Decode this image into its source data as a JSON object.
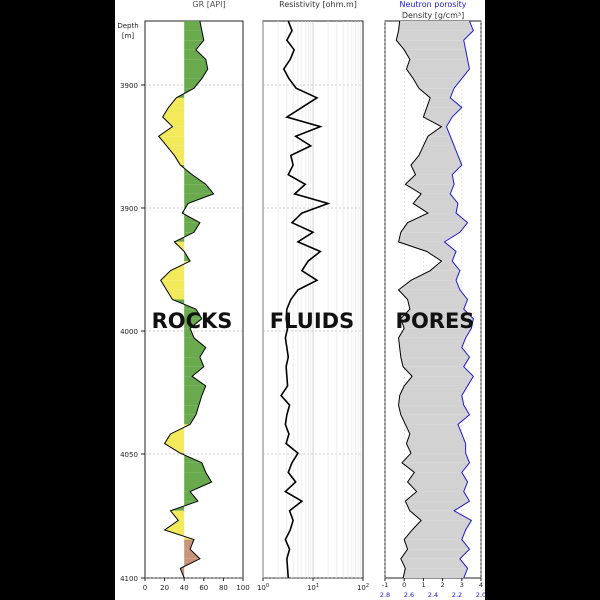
{
  "chart_data": {
    "type": "line",
    "depth_axis": {
      "label_line1": "Depth",
      "label_line2": "[m]",
      "ticks": [
        "3900",
        "3900",
        "4000",
        "4050",
        "4100"
      ]
    },
    "overlay_labels": [
      "ROCKS",
      "FLUIDS",
      "PORES"
    ],
    "tracks": [
      {
        "title": "GR [API]",
        "xlim": [
          0,
          100
        ],
        "ticks": [
          "0",
          "20",
          "40",
          "60",
          "80",
          "100"
        ],
        "fill_colors": {
          "shale": "#6aaa4e",
          "sand": "#f2ea5a",
          "other": "#c9957a"
        },
        "series": [
          {
            "name": "GR",
            "color": "#000000",
            "depth": [
              0,
              10,
              20,
              30,
              40,
              50,
              60,
              70,
              80,
              90,
              100,
              110,
              120,
              130,
              140,
              150,
              160,
              170,
              180,
              190,
              200,
              210,
              220,
              230,
              240,
              250,
              260,
              270,
              280,
              290,
              300,
              310,
              320,
              330,
              340,
              350,
              360,
              370,
              380,
              390,
              400,
              410,
              420,
              430,
              440,
              450,
              460,
              470,
              480,
              490,
              500,
              510,
              520,
              530,
              540,
              550,
              560,
              570,
              580
            ],
            "values": [
              56,
              58,
              60,
              52,
              62,
              64,
              58,
              50,
              32,
              24,
              18,
              28,
              14,
              22,
              30,
              36,
              48,
              62,
              70,
              44,
              38,
              56,
              50,
              30,
              40,
              46,
              26,
              16,
              22,
              28,
              52,
              58,
              46,
              50,
              62,
              56,
              60,
              48,
              62,
              58,
              55,
              52,
              46,
              26,
              20,
              36,
              58,
              62,
              68,
              46,
              54,
              26,
              34,
              20,
              50,
              46,
              56,
              36,
              40
            ]
          }
        ]
      },
      {
        "title": "Resistivity [ohm.m]",
        "scale": "log",
        "xlim": [
          1,
          100
        ],
        "ticks": [
          {
            "base": "10",
            "exp": "0"
          },
          {
            "base": "10",
            "exp": "1"
          },
          {
            "base": "10",
            "exp": "2"
          }
        ],
        "series": [
          {
            "name": "Resistivity",
            "color": "#000000",
            "depth": [
              0,
              10,
              20,
              30,
              40,
              50,
              60,
              70,
              80,
              90,
              100,
              110,
              120,
              130,
              140,
              150,
              160,
              170,
              180,
              190,
              200,
              210,
              220,
              230,
              240,
              250,
              260,
              270,
              280,
              290,
              300,
              310,
              320,
              330,
              340,
              350,
              360,
              370,
              380,
              390,
              400,
              410,
              420,
              430,
              440,
              450,
              460,
              470,
              480,
              490,
              500,
              510,
              520,
              530,
              540,
              550,
              560,
              570,
              580
            ],
            "values": [
              3.2,
              3.8,
              3.0,
              4.2,
              3.5,
              2.6,
              3.3,
              4.6,
              12,
              6,
              3.0,
              14,
              4.5,
              9,
              3.6,
              4.0,
              3.2,
              7,
              4.3,
              20,
              6,
              3.8,
              10,
              5,
              14,
              8,
              6,
              12,
              5,
              3.6,
              3.0,
              2.9,
              3.1,
              2.8,
              3.0,
              3.2,
              2.9,
              3.0,
              3.1,
              2.3,
              3.4,
              3.0,
              2.8,
              3.3,
              2.9,
              5,
              3.8,
              3.2,
              4.5,
              2.8,
              6,
              3.4,
              4.0,
              3.5,
              2.8,
              3.4,
              3.0,
              3.1,
              3.2
            ]
          }
        ]
      },
      {
        "title_top": "Neutron porosity",
        "title_bottom": "Density [g/cm³]",
        "top_ticks": [
          "-1",
          "0",
          "1",
          "2",
          "3",
          "4"
        ],
        "bottom_ticks": [
          "2.8",
          "2.6",
          "2.4",
          "2.2",
          "2.0"
        ],
        "neutron_color": "#1a1acc",
        "density_color": "#000000",
        "fill_colors": {
          "main": "#d2d2d2",
          "crossover": "#e06070"
        },
        "series": [
          {
            "name": "Density",
            "axis": "bottom",
            "xlim": [
              2.8,
              1.95
            ],
            "depth": [
              0,
              10,
              20,
              30,
              40,
              50,
              60,
              70,
              80,
              90,
              100,
              110,
              120,
              130,
              140,
              150,
              160,
              170,
              180,
              190,
              200,
              210,
              220,
              230,
              240,
              250,
              260,
              270,
              280,
              290,
              300,
              310,
              320,
              330,
              340,
              350,
              360,
              370,
              380,
              390,
              400,
              410,
              420,
              430,
              440,
              450,
              460,
              470,
              480,
              490,
              500,
              510,
              520,
              530,
              540,
              550,
              560,
              570,
              580
            ],
            "values": [
              2.67,
              2.68,
              2.7,
              2.63,
              2.58,
              2.61,
              2.55,
              2.5,
              2.4,
              2.43,
              2.46,
              2.3,
              2.42,
              2.46,
              2.5,
              2.57,
              2.53,
              2.62,
              2.48,
              2.55,
              2.42,
              2.6,
              2.66,
              2.68,
              2.43,
              2.3,
              2.4,
              2.57,
              2.68,
              2.6,
              2.58,
              2.66,
              2.63,
              2.68,
              2.67,
              2.66,
              2.64,
              2.56,
              2.63,
              2.67,
              2.68,
              2.66,
              2.62,
              2.58,
              2.61,
              2.57,
              2.65,
              2.54,
              2.6,
              2.52,
              2.62,
              2.58,
              2.48,
              2.56,
              2.63,
              2.6,
              2.66,
              2.62,
              2.64
            ]
          },
          {
            "name": "Neutron porosity",
            "axis": "top",
            "xlim": [
              -1,
              4
            ],
            "depth": [
              0,
              10,
              20,
              30,
              40,
              50,
              60,
              70,
              80,
              90,
              100,
              110,
              120,
              130,
              140,
              150,
              160,
              170,
              180,
              190,
              200,
              210,
              220,
              230,
              240,
              250,
              260,
              270,
              280,
              290,
              300,
              310,
              320,
              330,
              340,
              350,
              360,
              370,
              380,
              390,
              400,
              410,
              420,
              430,
              440,
              450,
              460,
              470,
              480,
              490,
              500,
              510,
              520,
              530,
              540,
              550,
              560,
              570,
              580
            ],
            "values": [
              3.4,
              3.6,
              3.1,
              3.2,
              3.3,
              3.4,
              3.0,
              2.6,
              2.4,
              3.0,
              2.5,
              2.2,
              2.4,
              2.6,
              2.8,
              3.0,
              2.5,
              2.6,
              2.4,
              2.8,
              2.7,
              3.3,
              2.9,
              2.1,
              2.7,
              2.5,
              2.9,
              2.7,
              2.9,
              3.3,
              3.1,
              3.6,
              3.5,
              3.2,
              3.0,
              3.4,
              3.1,
              3.6,
              3.3,
              3.0,
              3.1,
              3.4,
              2.8,
              3.0,
              3.2,
              3.2,
              3.4,
              3.0,
              3.3,
              3.1,
              3.4,
              2.6,
              3.5,
              3.2,
              3.0,
              3.4,
              2.9,
              3.3,
              3.1
            ]
          }
        ]
      }
    ]
  }
}
